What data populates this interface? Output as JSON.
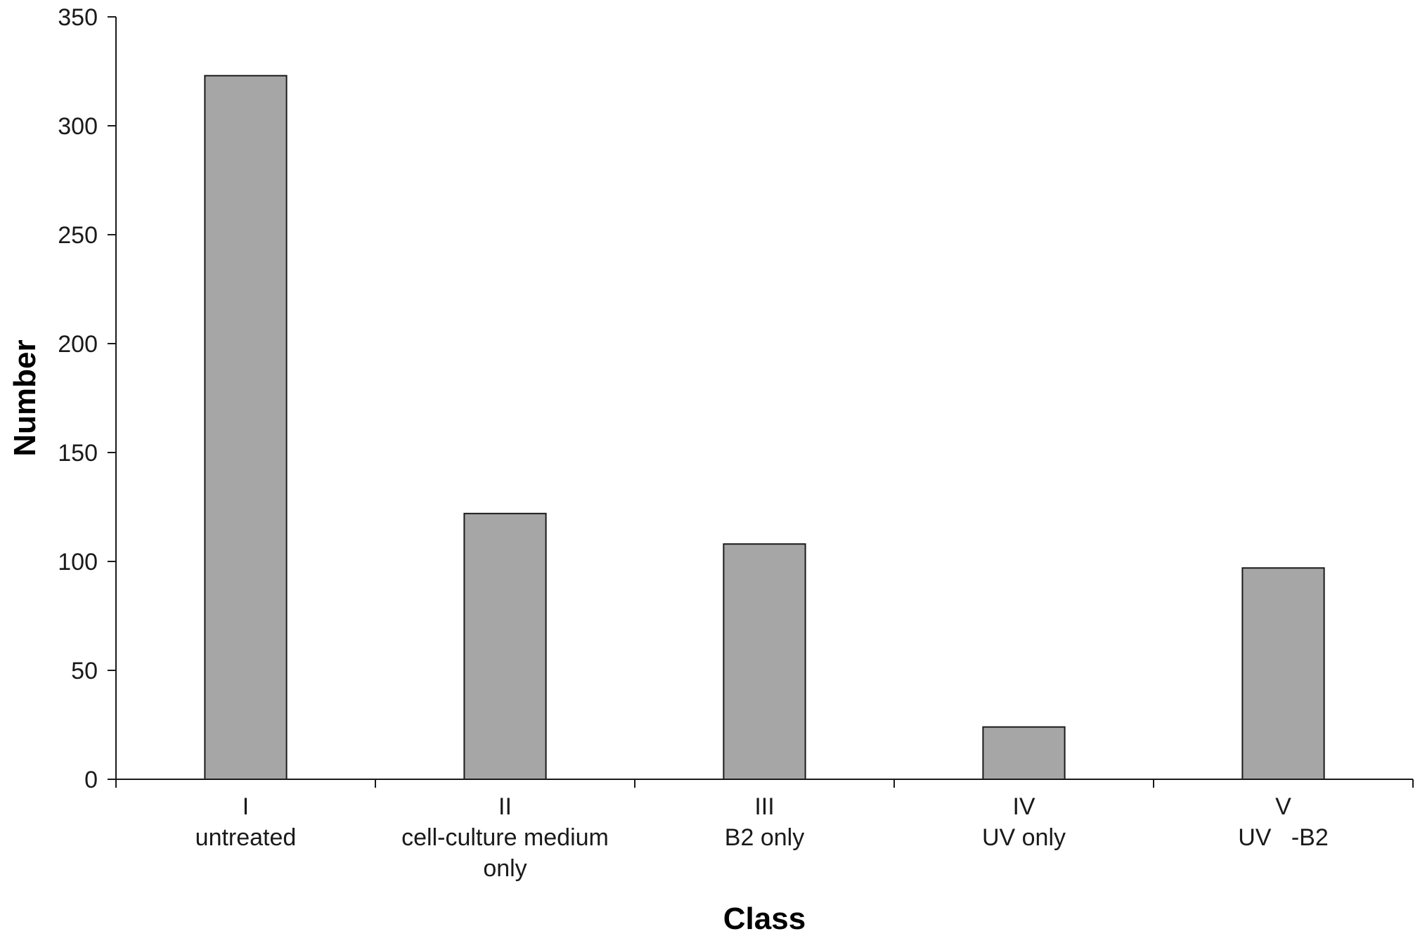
{
  "chart_data": {
    "type": "bar",
    "title": "",
    "xlabel": "Class",
    "ylabel": "Number",
    "ylim": [
      0,
      350
    ],
    "yticks": [
      "0",
      "50",
      "100",
      "150",
      "200",
      "250",
      "300",
      "350"
    ],
    "categories": [
      {
        "numeral": "I",
        "label_lines": [
          "untreated"
        ]
      },
      {
        "numeral": "II",
        "label_lines": [
          "cell-culture medium",
          "only"
        ]
      },
      {
        "numeral": "III",
        "label_lines": [
          "B2 only"
        ]
      },
      {
        "numeral": "IV",
        "label_lines": [
          "UV only"
        ]
      },
      {
        "numeral": "V",
        "label_lines": [
          "UV   -B2"
        ]
      }
    ],
    "values": [
      323,
      122,
      108,
      24,
      97
    ],
    "grid": false,
    "legend": "none",
    "bar_color": "#a6a6a6",
    "bar_edge_color": "#1a1a1a"
  }
}
